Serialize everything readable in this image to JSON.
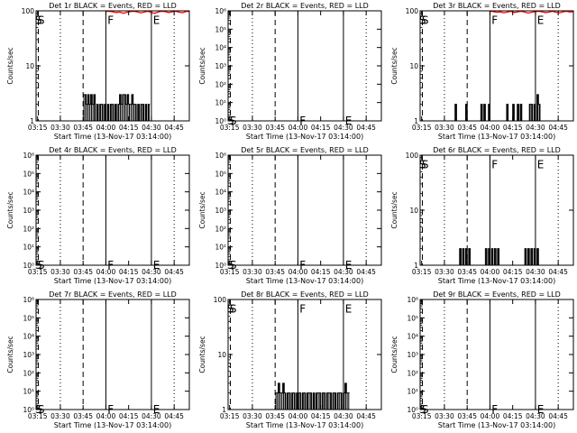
{
  "figure": {
    "xlabel": "Start Time (13-Nov-17 03:14:00)",
    "ylabel": "Counts/sec",
    "xticks": [
      "03:15",
      "03:30",
      "03:45",
      "04:00",
      "04:15",
      "04:30",
      "04:45"
    ],
    "xrange_min": [
      0,
      101
    ],
    "xtick_min": [
      1,
      16,
      31,
      46,
      61,
      76,
      91
    ],
    "markers": [
      {
        "t": 1.5,
        "style": "dashed"
      },
      {
        "t": 16,
        "style": "dotted"
      },
      {
        "t": 31,
        "style": "dashed"
      },
      {
        "t": 46,
        "style": "solid"
      },
      {
        "t": 76,
        "style": "solid"
      },
      {
        "t": 91,
        "style": "dotted"
      }
    ],
    "colors": {
      "events": "#000000",
      "lld": "#ff0000"
    }
  },
  "chart_data": [
    {
      "type": "line",
      "title": "Det 1r BLACK = Events, RED = LLD",
      "yscale": "log",
      "ylim": [
        1,
        100
      ],
      "yticklabels": [
        {
          "v": 1,
          "s": "1"
        },
        {
          "v": 10,
          "s": "10"
        },
        {
          "v": 100,
          "s": "100"
        }
      ],
      "letters": [
        {
          "s": "S",
          "t": 0.5,
          "v": 85
        },
        {
          "s": "F",
          "t": 46.5,
          "v": 85
        },
        {
          "s": "E",
          "t": 76.5,
          "v": 85
        }
      ],
      "events": {
        "start": 31,
        "end": 75,
        "pattern": [
          3,
          3,
          2,
          3,
          2,
          3,
          2,
          3,
          1,
          2,
          1,
          2,
          2,
          1,
          2,
          1,
          2,
          1,
          2,
          2,
          1,
          2,
          1,
          2,
          3,
          2,
          3,
          3,
          2,
          3,
          2,
          2,
          3,
          2,
          2,
          1,
          2,
          1,
          2,
          2,
          1,
          2,
          1,
          2
        ]
      },
      "lld": {
        "start": 46,
        "end": 101,
        "values": [
          100,
          98,
          96,
          93,
          95,
          90,
          94,
          97,
          100,
          96,
          92,
          95,
          98,
          94,
          90,
          95,
          100,
          97,
          93,
          96,
          99,
          95,
          92,
          97,
          100
        ]
      }
    },
    {
      "type": "line",
      "title": "Det 2r BLACK = Events, RED = LLD",
      "yscale": "log",
      "ylim": [
        1,
        1000000
      ],
      "yticklabels": [
        {
          "v": 1,
          "s": "10⁰"
        },
        {
          "v": 10,
          "s": "10¹"
        },
        {
          "v": 100,
          "s": "10²"
        },
        {
          "v": 1000,
          "s": "10³"
        },
        {
          "v": 10000,
          "s": "10⁴"
        },
        {
          "v": 100000,
          "s": "10⁵"
        },
        {
          "v": 1000000,
          "s": "10⁶"
        }
      ],
      "letters": [
        {
          "s": "S",
          "t": 0.5,
          "v": 2
        },
        {
          "s": "F",
          "t": 46.5,
          "v": 2
        },
        {
          "s": "E",
          "t": 76.5,
          "v": 2
        }
      ],
      "events": null,
      "lld": null
    },
    {
      "type": "line",
      "title": "Det 3r BLACK = Events, RED = LLD",
      "yscale": "log",
      "ylim": [
        1,
        100
      ],
      "yticklabels": [
        {
          "v": 1,
          "s": "1"
        },
        {
          "v": 10,
          "s": "10"
        },
        {
          "v": 100,
          "s": "100"
        }
      ],
      "letters": [
        {
          "s": "S",
          "t": 0.5,
          "v": 85
        },
        {
          "s": "F",
          "t": 46.5,
          "v": 85
        },
        {
          "s": "E",
          "t": 76.5,
          "v": 85
        }
      ],
      "events": {
        "start": 20,
        "end": 82,
        "pattern": [
          1,
          1,
          1,
          2,
          1,
          1,
          1,
          1,
          1,
          1,
          2,
          1,
          1,
          1,
          1,
          1,
          1,
          1,
          1,
          1,
          2,
          1,
          2,
          1,
          1,
          2,
          1,
          1,
          1,
          1,
          1,
          1,
          1,
          1,
          1,
          1,
          1,
          2,
          1,
          1,
          1,
          2,
          1,
          1,
          2,
          1,
          2,
          1,
          1,
          1,
          1,
          1,
          2,
          2,
          1,
          2,
          1,
          3,
          2,
          1,
          1,
          1
        ]
      },
      "lld": {
        "start": 46,
        "end": 101,
        "values": [
          100,
          97,
          94,
          96,
          92,
          95,
          98,
          93,
          96,
          100,
          95,
          91,
          94,
          97,
          100,
          96,
          93,
          95,
          98,
          94,
          92,
          96,
          99,
          95,
          97
        ]
      }
    },
    {
      "type": "line",
      "title": "Det 4r BLACK = Events, RED = LLD",
      "yscale": "log",
      "ylim": [
        1,
        1000000
      ],
      "yticklabels": [
        {
          "v": 1,
          "s": "10⁰"
        },
        {
          "v": 10,
          "s": "10¹"
        },
        {
          "v": 100,
          "s": "10²"
        },
        {
          "v": 1000,
          "s": "10³"
        },
        {
          "v": 10000,
          "s": "10⁴"
        },
        {
          "v": 100000,
          "s": "10⁵"
        },
        {
          "v": 1000000,
          "s": "10⁶"
        }
      ],
      "letters": [
        {
          "s": "S",
          "t": 0.5,
          "v": 2
        },
        {
          "s": "F",
          "t": 46.5,
          "v": 2
        },
        {
          "s": "E",
          "t": 76.5,
          "v": 2
        }
      ],
      "events": null,
      "lld": null
    },
    {
      "type": "line",
      "title": "Det 5r BLACK = Events, RED = LLD",
      "yscale": "log",
      "ylim": [
        1,
        1000000
      ],
      "yticklabels": [
        {
          "v": 1,
          "s": "10⁰"
        },
        {
          "v": 10,
          "s": "10¹"
        },
        {
          "v": 100,
          "s": "10²"
        },
        {
          "v": 1000,
          "s": "10³"
        },
        {
          "v": 10000,
          "s": "10⁴"
        },
        {
          "v": 100000,
          "s": "10⁵"
        },
        {
          "v": 1000000,
          "s": "10⁶"
        }
      ],
      "letters": [
        {
          "s": "S",
          "t": 0.5,
          "v": 2
        },
        {
          "s": "F",
          "t": 46.5,
          "v": 2
        },
        {
          "s": "E",
          "t": 76.5,
          "v": 2
        }
      ],
      "events": null,
      "lld": null
    },
    {
      "type": "line",
      "title": "Det 6r BLACK = Events, RED = LLD",
      "yscale": "log",
      "ylim": [
        1,
        100
      ],
      "yticklabels": [
        {
          "v": 1,
          "s": "1"
        },
        {
          "v": 10,
          "s": "10"
        },
        {
          "v": 100,
          "s": "100"
        }
      ],
      "letters": [
        {
          "s": "S",
          "t": 0.5,
          "v": 85
        },
        {
          "s": "F",
          "t": 46.5,
          "v": 85
        },
        {
          "s": "E",
          "t": 76.5,
          "v": 85
        }
      ],
      "events": {
        "start": 25,
        "end": 79,
        "pattern": [
          1,
          2,
          1,
          2,
          1,
          2,
          1,
          2,
          1,
          1,
          1,
          1,
          1,
          1,
          1,
          1,
          1,
          1,
          2,
          1,
          2,
          1,
          2,
          1,
          2,
          1,
          2,
          1,
          1,
          1,
          1,
          1,
          1,
          1,
          1,
          1,
          1,
          1,
          1,
          1,
          1,
          1,
          1,
          1,
          2,
          1,
          2,
          1,
          2,
          1,
          2,
          1,
          2,
          1
        ]
      },
      "lld": null
    },
    {
      "type": "line",
      "title": "Det 7r BLACK = Events, RED = LLD",
      "yscale": "log",
      "ylim": [
        1,
        1000000
      ],
      "yticklabels": [
        {
          "v": 1,
          "s": "10⁰"
        },
        {
          "v": 10,
          "s": "10¹"
        },
        {
          "v": 100,
          "s": "10²"
        },
        {
          "v": 1000,
          "s": "10³"
        },
        {
          "v": 10000,
          "s": "10⁴"
        },
        {
          "v": 100000,
          "s": "10⁵"
        },
        {
          "v": 1000000,
          "s": "10⁶"
        }
      ],
      "letters": [
        {
          "s": "S",
          "t": 0.5,
          "v": 2
        },
        {
          "s": "F",
          "t": 46.5,
          "v": 2
        },
        {
          "s": "E",
          "t": 76.5,
          "v": 2
        }
      ],
      "events": null,
      "lld": null
    },
    {
      "type": "line",
      "title": "Det 8r BLACK = Events, RED = LLD",
      "yscale": "log",
      "ylim": [
        1,
        100
      ],
      "yticklabels": [
        {
          "v": 1,
          "s": "1"
        },
        {
          "v": 10,
          "s": "10"
        },
        {
          "v": 100,
          "s": "100"
        }
      ],
      "letters": [
        {
          "s": "S",
          "t": 0.5,
          "v": 85
        },
        {
          "s": "F",
          "t": 46.5,
          "v": 85
        },
        {
          "s": "E",
          "t": 76.5,
          "v": 85
        }
      ],
      "events": {
        "start": 31,
        "end": 80,
        "pattern": [
          2,
          2,
          3,
          2,
          2,
          3,
          2,
          1,
          2,
          2,
          1,
          2,
          2,
          1,
          2,
          2,
          2,
          1,
          2,
          2,
          1,
          2,
          2,
          2,
          1,
          2,
          1,
          2,
          2,
          2,
          1,
          2,
          2,
          1,
          2,
          2,
          2,
          1,
          2,
          2,
          1,
          2,
          2,
          2,
          1,
          2,
          3,
          2,
          2
        ]
      },
      "lld": null
    },
    {
      "type": "line",
      "title": "Det 9r BLACK = Events, RED = LLD",
      "yscale": "log",
      "ylim": [
        1,
        1000000
      ],
      "yticklabels": [
        {
          "v": 1,
          "s": "10⁰"
        },
        {
          "v": 10,
          "s": "10¹"
        },
        {
          "v": 100,
          "s": "10²"
        },
        {
          "v": 1000,
          "s": "10³"
        },
        {
          "v": 10000,
          "s": "10⁴"
        },
        {
          "v": 100000,
          "s": "10⁵"
        },
        {
          "v": 1000000,
          "s": "10⁶"
        }
      ],
      "letters": [
        {
          "s": "S",
          "t": 0.5,
          "v": 2
        },
        {
          "s": "F",
          "t": 46.5,
          "v": 2
        },
        {
          "s": "E",
          "t": 76.5,
          "v": 2
        }
      ],
      "events": null,
      "lld": null
    }
  ]
}
